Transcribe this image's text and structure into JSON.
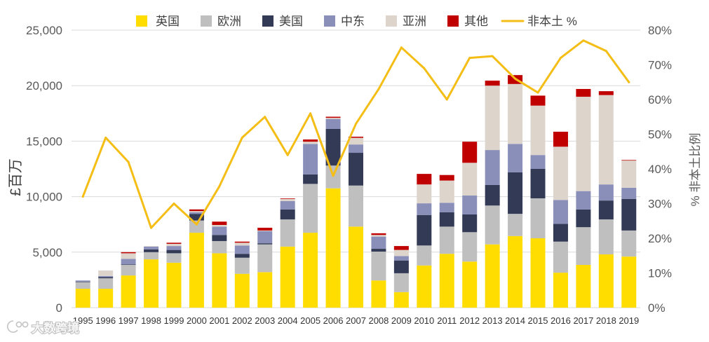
{
  "chart_data": {
    "type": "bar",
    "stacked": true,
    "title": "",
    "xlabel": "",
    "ylabel": "£百万",
    "y2label": "% 非本土比例",
    "categories": [
      "1995",
      "1996",
      "1997",
      "1998",
      "1999",
      "2000",
      "2001",
      "2002",
      "2003",
      "2004",
      "2005",
      "2006",
      "2007",
      "2008",
      "2009",
      "2010",
      "2011",
      "2012",
      "2013",
      "2014",
      "2015",
      "2016",
      "2017",
      "2018",
      "2019"
    ],
    "series": [
      {
        "name": "英国",
        "color": "#FFDD00",
        "values": [
          1700,
          1700,
          2900,
          4350,
          4050,
          6750,
          4900,
          3050,
          3200,
          5500,
          6750,
          10750,
          7300,
          2450,
          1400,
          3800,
          4850,
          4150,
          5700,
          6450,
          6250,
          3150,
          3850,
          4800,
          4600
        ]
      },
      {
        "name": "欧洲",
        "color": "#BFBFBF",
        "values": [
          600,
          950,
          950,
          650,
          850,
          1100,
          1100,
          1450,
          2500,
          2450,
          4400,
          2050,
          3700,
          2600,
          1700,
          1800,
          2450,
          2650,
          3500,
          2000,
          3600,
          2800,
          3400,
          3150,
          2350
        ]
      },
      {
        "name": "美国",
        "color": "#333A56",
        "values": [
          50,
          100,
          50,
          250,
          300,
          600,
          550,
          350,
          100,
          900,
          850,
          3300,
          2950,
          250,
          1150,
          2750,
          1300,
          1600,
          1850,
          3750,
          2650,
          1600,
          1600,
          1700,
          2850
        ]
      },
      {
        "name": "中东",
        "color": "#8A8FBA",
        "values": [
          100,
          100,
          500,
          250,
          350,
          150,
          750,
          750,
          1100,
          750,
          2750,
          900,
          750,
          1100,
          400,
          1050,
          850,
          1700,
          3150,
          2550,
          1250,
          2150,
          1650,
          1450,
          1000
        ]
      },
      {
        "name": "亚洲",
        "color": "#DDD4CC",
        "values": [
          0,
          500,
          500,
          50,
          200,
          100,
          150,
          250,
          50,
          200,
          200,
          100,
          600,
          150,
          550,
          1700,
          2000,
          2950,
          5800,
          5400,
          4450,
          4800,
          8500,
          8050,
          2450
        ]
      },
      {
        "name": "其他",
        "color": "#C00000",
        "values": [
          0,
          0,
          100,
          0,
          100,
          150,
          300,
          100,
          250,
          50,
          200,
          100,
          100,
          150,
          350,
          950,
          500,
          1900,
          450,
          800,
          900,
          1350,
          700,
          350,
          50
        ]
      }
    ],
    "line_series": {
      "name": "非本土 %",
      "color": "#F4BE17",
      "values": [
        32,
        49,
        42,
        23,
        30,
        24,
        35,
        49,
        55,
        44,
        56,
        38,
        53,
        63,
        75,
        69,
        60,
        72,
        72.5,
        66,
        62,
        72,
        77,
        74,
        65
      ]
    },
    "ylim": [
      0,
      25000
    ],
    "y2lim": [
      0,
      80
    ],
    "yticks": [
      "0",
      "5,000",
      "10,000",
      "15,000",
      "20,000",
      "25,000"
    ],
    "y2ticks": [
      "0%",
      "10%",
      "20%",
      "30%",
      "40%",
      "50%",
      "60%",
      "70%",
      "80%"
    ],
    "grid": true,
    "legend": "top"
  },
  "watermark": "大数跨境"
}
